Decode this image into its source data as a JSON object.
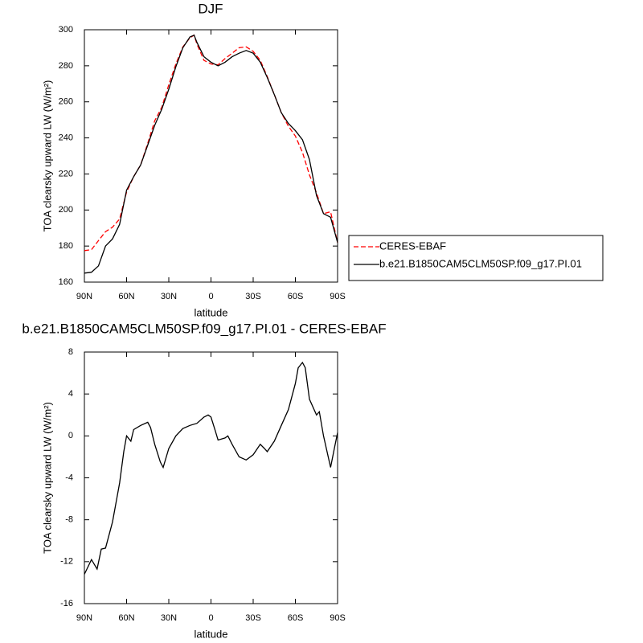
{
  "chart_data": [
    {
      "type": "line",
      "title": "DJF",
      "xlabel": "latitude",
      "ylabel": "TOA clearsky upward LW (W/m²)",
      "x": [
        90,
        85,
        80,
        75,
        70,
        65,
        60,
        55,
        50,
        45,
        40,
        35,
        30,
        25,
        20,
        15,
        12,
        10,
        5,
        0,
        -5,
        -10,
        -15,
        -20,
        -25,
        -30,
        -35,
        -40,
        -45,
        -50,
        -55,
        -60,
        -65,
        -70,
        -75,
        -80,
        -85,
        -90
      ],
      "xlim": [
        90,
        -90
      ],
      "xticks": [
        {
          "value": 90,
          "label": "90N"
        },
        {
          "value": 60,
          "label": "60N"
        },
        {
          "value": 30,
          "label": "30N"
        },
        0,
        {
          "value": -30,
          "label": "30S"
        },
        {
          "value": -60,
          "label": "60S"
        },
        {
          "value": -90,
          "label": "90S"
        }
      ],
      "ylim": [
        160,
        300
      ],
      "yticks": [
        160,
        180,
        200,
        220,
        240,
        260,
        280,
        300
      ],
      "legend": "right",
      "series": [
        {
          "name": "CERES-EBAF",
          "color": "#ff0000",
          "style": "dashed",
          "values": [
            177.5,
            178,
            183,
            188,
            190.5,
            195,
            210,
            218.5,
            225,
            237,
            249.5,
            257,
            269.5,
            281,
            290.5,
            295.5,
            297,
            292,
            283,
            281,
            280.5,
            284,
            287,
            290,
            290.5,
            288,
            283,
            274,
            264,
            254,
            246.5,
            241,
            232,
            219.5,
            209.5,
            198,
            199,
            182
          ]
        },
        {
          "name": "b.e21.B1850CAM5CLM50SP.f09_g17.PI.01",
          "color": "#000000",
          "style": "solid",
          "values": [
            165,
            165.5,
            169,
            180,
            184,
            192,
            211,
            218.5,
            225,
            236,
            247,
            256,
            267,
            279.5,
            290,
            296,
            297,
            293,
            285,
            282,
            280,
            282,
            285,
            287,
            288.5,
            287,
            282,
            273.5,
            264,
            254,
            248,
            244,
            239,
            228,
            208,
            198,
            196,
            182
          ]
        }
      ]
    },
    {
      "type": "line",
      "title": "b.e21.B1850CAM5CLM50SP.f09_g17.PI.01 - CERES-EBAF",
      "xlabel": "latitude",
      "ylabel": "TOA clearsky upward LW (W/m²)",
      "x": [
        90,
        85,
        81,
        78,
        75,
        70,
        65,
        62,
        60,
        57,
        55,
        50,
        45,
        43,
        40,
        36,
        34,
        30,
        25,
        20,
        15,
        10,
        5,
        2,
        0,
        -3,
        -5,
        -10,
        -12,
        -15,
        -20,
        -25,
        -30,
        -35,
        -38,
        -40,
        -45,
        -50,
        -55,
        -60,
        -62,
        -65,
        -67,
        -70,
        -75,
        -77,
        -80,
        -85,
        -88,
        -90
      ],
      "values": [
        -13.2,
        -11.8,
        -12.7,
        -10.8,
        -10.7,
        -8.2,
        -4.5,
        -1.5,
        0,
        -0.5,
        0.6,
        1,
        1.3,
        0.8,
        -0.8,
        -2.5,
        -3,
        -1.2,
        0,
        0.7,
        1,
        1.2,
        1.8,
        2,
        1.8,
        0.5,
        -0.4,
        -0.2,
        0,
        -0.8,
        -2,
        -2.3,
        -1.8,
        -0.8,
        -1.2,
        -1.5,
        -0.5,
        1,
        2.5,
        5,
        6.5,
        7,
        6.5,
        3.5,
        2,
        2.3,
        0,
        -3,
        -1,
        0.3
      ],
      "color": "#000000",
      "xlim": [
        90,
        -90
      ],
      "xticks": [
        {
          "value": 90,
          "label": "90N"
        },
        {
          "value": 60,
          "label": "60N"
        },
        {
          "value": 30,
          "label": "30N"
        },
        0,
        {
          "value": -30,
          "label": "30S"
        },
        {
          "value": -60,
          "label": "60S"
        },
        {
          "value": -90,
          "label": "90S"
        }
      ],
      "ylim": [
        -16,
        8
      ],
      "yticks": [
        -16,
        -12,
        -8,
        -4,
        0,
        4,
        8
      ]
    }
  ]
}
